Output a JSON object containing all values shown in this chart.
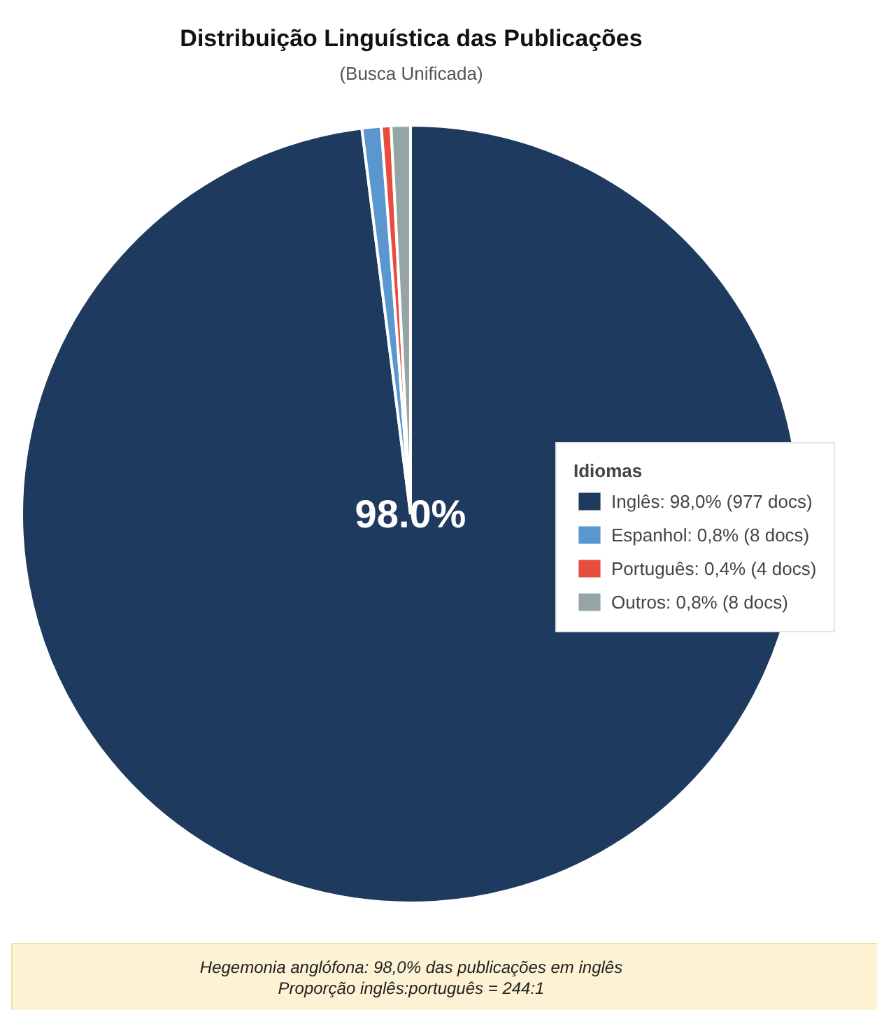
{
  "chart_data": {
    "type": "pie",
    "title": "Distribuição Linguística das Publicações",
    "subtitle": "(Busca Unificada)",
    "legend_title": "Idiomas",
    "categories": [
      "Inglês: 98,0% (977 docs)",
      "Espanhol: 0,8% (8 docs)",
      "Português: 0,4% (4 docs)",
      "Outros: 0,8% (8 docs)"
    ],
    "values": [
      98.0,
      0.8,
      0.4,
      0.8
    ],
    "colors": [
      "#1f3a5f",
      "#5b97cf",
      "#e74c3c",
      "#95a5a6"
    ],
    "value_labels": [
      "98.0%",
      null,
      null,
      null
    ],
    "legend": "right",
    "annotations": [
      "Hegemonia anglófona: 98,0% das publicações em inglês",
      "Proporção inglês:português = 244:1"
    ]
  }
}
